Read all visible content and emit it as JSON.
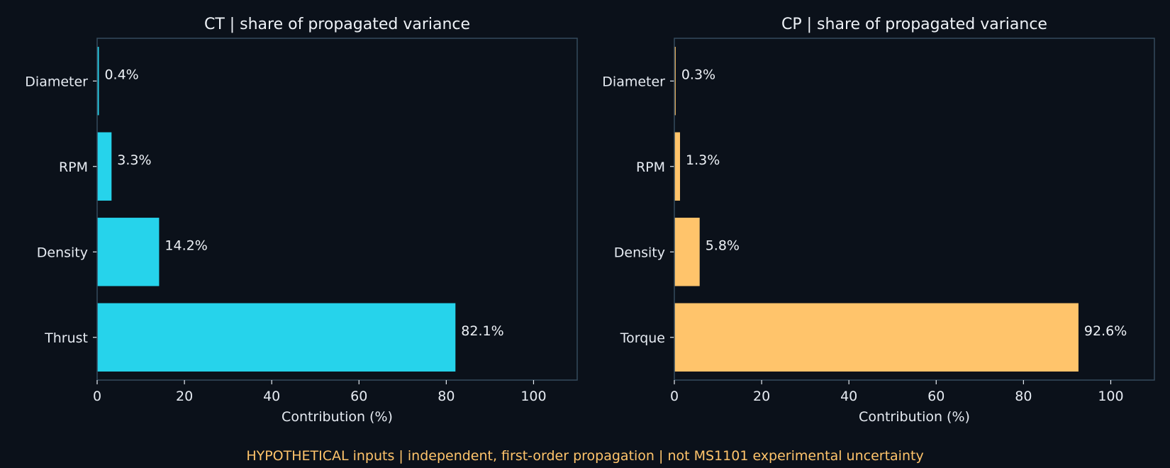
{
  "chart_data": [
    {
      "type": "bar",
      "orientation": "horizontal",
      "title": "CT | share of propagated variance",
      "categories": [
        "Diameter",
        "RPM",
        "Density",
        "Thrust"
      ],
      "values": [
        0.4,
        3.3,
        14.2,
        82.1
      ],
      "data_labels": [
        "0.4%",
        "3.3%",
        "14.2%",
        "82.1%"
      ],
      "xlabel": "Contribution (%)",
      "xlim": [
        0,
        110
      ],
      "xticks": [
        0,
        20,
        40,
        60,
        80,
        100
      ],
      "color": "#26d3eb",
      "grid": false
    },
    {
      "type": "bar",
      "orientation": "horizontal",
      "title": "CP | share of propagated variance",
      "categories": [
        "Diameter",
        "RPM",
        "Density",
        "Torque"
      ],
      "values": [
        0.3,
        1.3,
        5.8,
        92.6
      ],
      "data_labels": [
        "0.3%",
        "1.3%",
        "5.8%",
        "92.6%"
      ],
      "xlabel": "Contribution (%)",
      "xlim": [
        0,
        110
      ],
      "xticks": [
        0,
        20,
        40,
        60,
        80,
        100
      ],
      "color": "#ffc46b",
      "grid": false
    }
  ],
  "footnote": "HYPOTHETICAL inputs | independent, first-order propagation | not MS1101 experimental uncertainty",
  "colors": {
    "background": "#0b111a",
    "axes_frame": "#344b5c",
    "text": "#e6ebf2",
    "footnote": "#ffc46b"
  }
}
